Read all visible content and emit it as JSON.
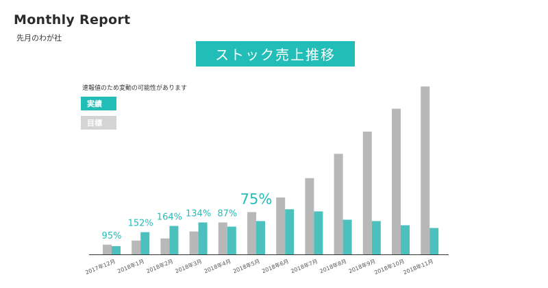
{
  "header": {
    "title": "Monthly Report",
    "subtitle": "先月のわが社"
  },
  "chart_data": {
    "type": "bar",
    "title": "ストック売上推移",
    "note": "速報値のため変動の可能性があります",
    "legend": [
      {
        "label": "実績",
        "color": "#23bdb8"
      },
      {
        "label": "目標",
        "color": "#d4d4d4"
      }
    ],
    "categories": [
      "2017年12月",
      "2018年1月",
      "2018年2月",
      "2018年3月",
      "2018年4月",
      "2018年5月",
      "2018年6月",
      "2018年7月",
      "2018年8月",
      "2018年9月",
      "2018年10月",
      "2018年11月"
    ],
    "series": [
      {
        "name": "目標",
        "color": "#b8b8b8",
        "values": [
          14,
          20,
          23,
          33,
          46,
          61,
          82,
          110,
          145,
          177,
          210,
          242
        ]
      },
      {
        "name": "実績",
        "color": "#4cc0bd",
        "values": [
          12,
          32,
          41,
          46,
          40,
          48,
          65,
          62,
          50,
          48,
          42,
          38
        ]
      }
    ],
    "annotations": [
      "95%",
      "152%",
      "164%",
      "134%",
      "87%",
      "75%",
      "",
      "",
      "",
      "",
      "",
      ""
    ],
    "highlight_index": 5,
    "ylim": [
      0,
      250
    ],
    "grid": false
  }
}
